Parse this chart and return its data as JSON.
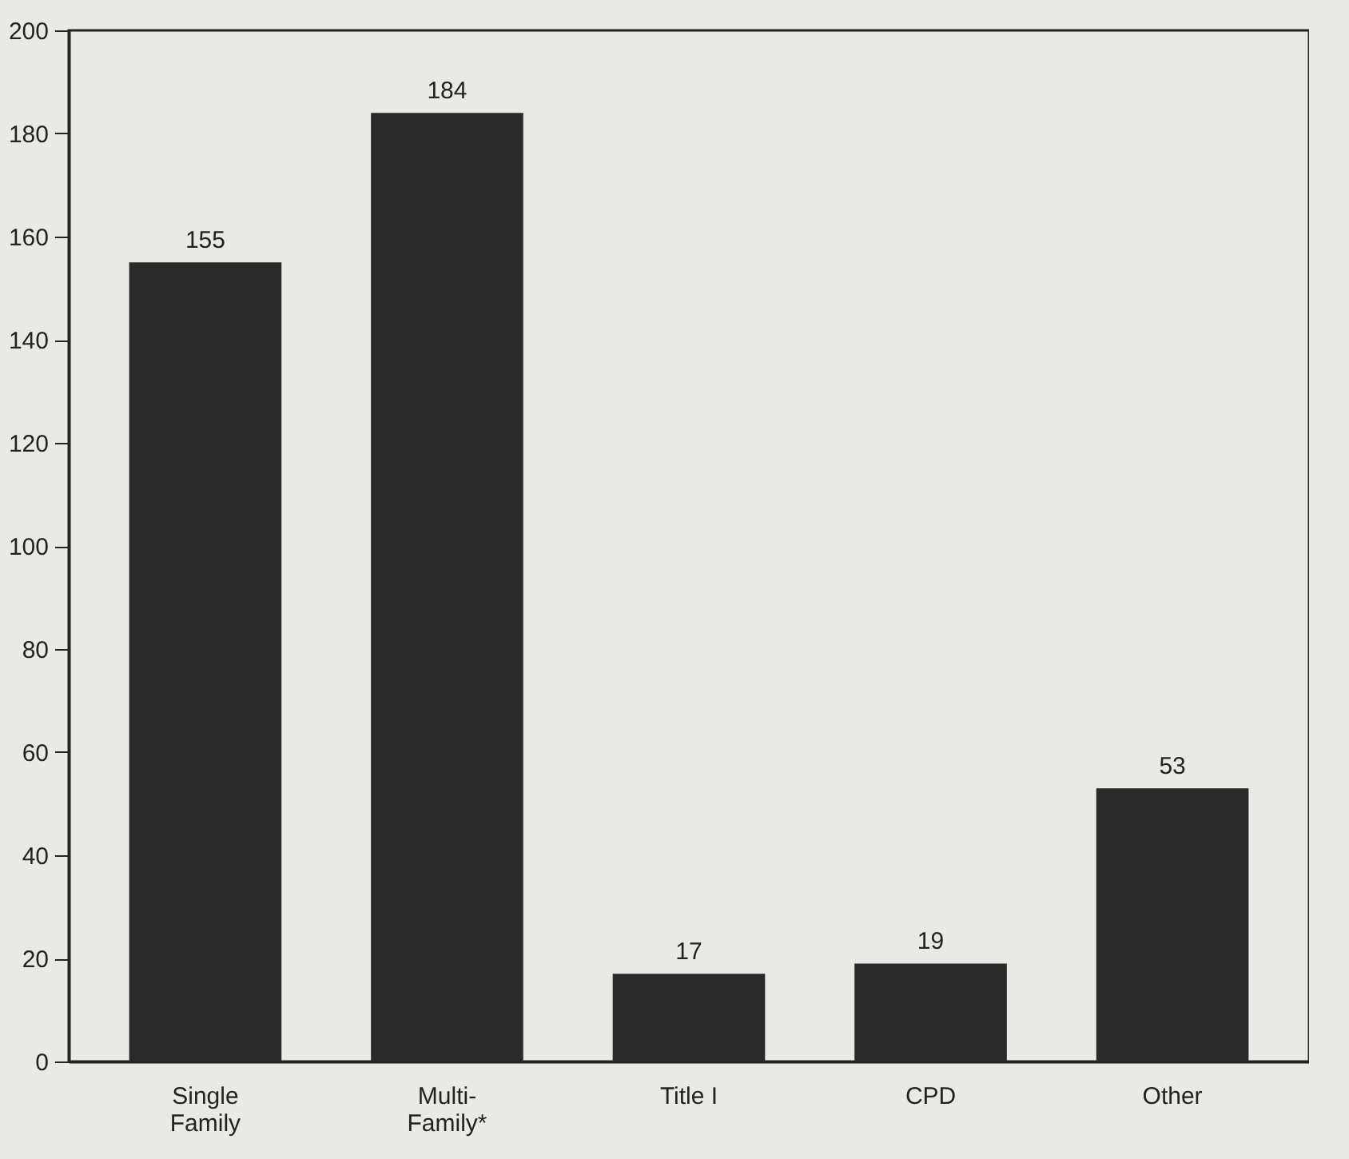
{
  "chart_data": {
    "type": "bar",
    "categories": [
      "Single Family",
      "Multi-Family*",
      "Title I",
      "CPD",
      "Other"
    ],
    "values": [
      155,
      184,
      17,
      19,
      53
    ],
    "color": "#2b2a2b",
    "ylim": [
      0,
      200
    ],
    "yticks": [
      0,
      20,
      40,
      60,
      80,
      100,
      120,
      140,
      160,
      180,
      200
    ],
    "grid": false,
    "data_labels": true
  }
}
